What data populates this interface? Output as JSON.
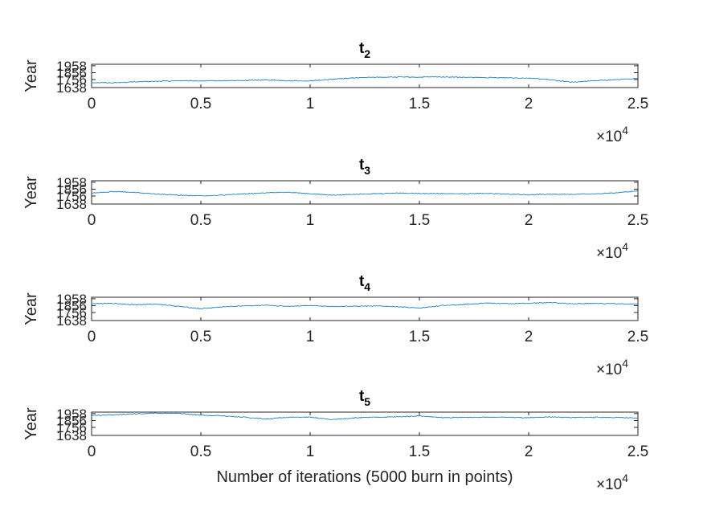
{
  "figure": {
    "xlabel": "Number of iterations (5000 burn in points)",
    "exponent_base": "×10",
    "exponent_power": "4"
  },
  "chart_data": [
    {
      "type": "line",
      "title_main": "t",
      "title_sub": "2",
      "ylabel": "Year",
      "xlim": [
        0,
        25000
      ],
      "ylim": [
        1638,
        1980
      ],
      "yticks": [
        1638,
        1756,
        1856,
        1958
      ],
      "xticks": [
        0,
        0.5,
        1,
        1.5,
        2,
        2.5
      ],
      "color": "#0072BD",
      "series": [
        {
          "x": [
            0,
            1000,
            2000,
            3000,
            4000,
            5000,
            6000,
            7000,
            8000,
            9000,
            10000,
            11000,
            12000,
            13000,
            14000,
            15000,
            16000,
            17000,
            18000,
            19000,
            20000,
            21000,
            22000,
            23000,
            24000,
            25000
          ],
          "values": [
            1712,
            1708,
            1722,
            1730,
            1738,
            1735,
            1738,
            1742,
            1752,
            1738,
            1735,
            1760,
            1780,
            1790,
            1792,
            1790,
            1795,
            1788,
            1784,
            1782,
            1778,
            1752,
            1715,
            1740,
            1752,
            1775
          ]
        }
      ]
    },
    {
      "type": "line",
      "title_main": "t",
      "title_sub": "3",
      "ylabel": "Year",
      "xlim": [
        0,
        25000
      ],
      "ylim": [
        1638,
        1980
      ],
      "yticks": [
        1638,
        1756,
        1856,
        1958
      ],
      "xticks": [
        0,
        0.5,
        1,
        1.5,
        2,
        2.5
      ],
      "color": "#0072BD",
      "series": [
        {
          "x": [
            0,
            1000,
            2000,
            3000,
            4000,
            5000,
            6000,
            7000,
            8000,
            9000,
            10000,
            11000,
            12000,
            13000,
            14000,
            15000,
            16000,
            17000,
            18000,
            19000,
            20000,
            21000,
            22000,
            23000,
            24000,
            25000
          ],
          "values": [
            1800,
            1822,
            1808,
            1785,
            1768,
            1760,
            1768,
            1790,
            1802,
            1812,
            1790,
            1768,
            1782,
            1790,
            1800,
            1795,
            1792,
            1790,
            1795,
            1785,
            1775,
            1782,
            1780,
            1788,
            1805,
            1830
          ]
        }
      ]
    },
    {
      "type": "line",
      "title_main": "t",
      "title_sub": "4",
      "ylabel": "Year",
      "xlim": [
        0,
        25000
      ],
      "ylim": [
        1638,
        1980
      ],
      "yticks": [
        1638,
        1756,
        1856,
        1958
      ],
      "xticks": [
        0,
        0.5,
        1,
        1.5,
        2,
        2.5
      ],
      "color": "#0072BD",
      "series": [
        {
          "x": [
            0,
            1000,
            2000,
            3000,
            4000,
            5000,
            6000,
            7000,
            8000,
            9000,
            10000,
            11000,
            12000,
            13000,
            14000,
            15000,
            16000,
            17000,
            18000,
            19000,
            20000,
            21000,
            22000,
            23000,
            24000,
            25000
          ],
          "values": [
            1885,
            1890,
            1870,
            1880,
            1845,
            1812,
            1838,
            1855,
            1860,
            1848,
            1860,
            1845,
            1848,
            1852,
            1840,
            1820,
            1858,
            1875,
            1895,
            1885,
            1892,
            1902,
            1885,
            1890,
            1885,
            1878
          ]
        }
      ]
    },
    {
      "type": "line",
      "title_main": "t",
      "title_sub": "5",
      "ylabel": "Year",
      "xlim": [
        0,
        25000
      ],
      "ylim": [
        1638,
        1980
      ],
      "yticks": [
        1638,
        1756,
        1856,
        1958
      ],
      "xticks": [
        0,
        0.5,
        1,
        1.5,
        2,
        2.5
      ],
      "color": "#0072BD",
      "series": [
        {
          "x": [
            0,
            1000,
            2000,
            3000,
            4000,
            5000,
            6000,
            7000,
            8000,
            9000,
            10000,
            11000,
            12000,
            13000,
            14000,
            15000,
            16000,
            17000,
            18000,
            19000,
            20000,
            21000,
            22000,
            23000,
            24000,
            25000
          ],
          "values": [
            1930,
            1940,
            1955,
            1965,
            1960,
            1935,
            1925,
            1905,
            1880,
            1905,
            1905,
            1870,
            1895,
            1905,
            1910,
            1925,
            1898,
            1902,
            1908,
            1905,
            1895,
            1910,
            1900,
            1905,
            1902,
            1890
          ]
        }
      ]
    }
  ]
}
